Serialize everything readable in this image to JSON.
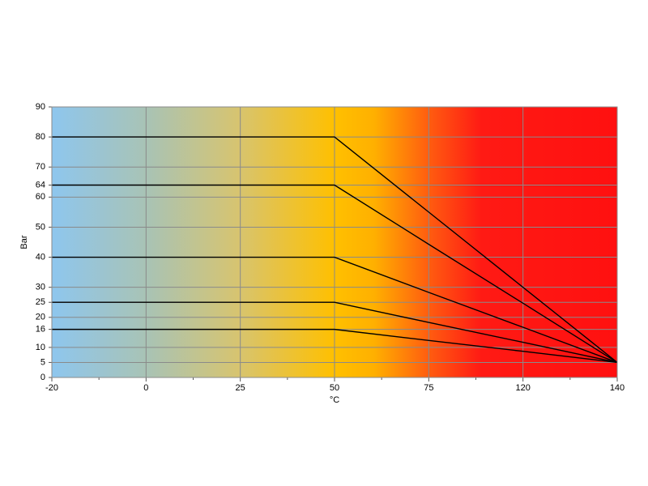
{
  "chart_data": {
    "type": "line",
    "x_label": "°C",
    "y_label": "Bar",
    "categories": [
      "-20",
      "0",
      "25",
      "50",
      "75",
      "120",
      "140"
    ],
    "series": [
      {
        "color": "#000000",
        "values": [
          80,
          80,
          80,
          80,
          55,
          30,
          5
        ]
      },
      {
        "color": "#000000",
        "values": [
          64,
          64,
          64,
          64,
          44.3,
          24.7,
          5
        ]
      },
      {
        "color": "#000000",
        "values": [
          40,
          40,
          40,
          40,
          28.3,
          16.7,
          5
        ]
      },
      {
        "color": "#000000",
        "values": [
          25,
          25,
          25,
          25,
          18.3,
          11.7,
          5
        ]
      },
      {
        "color": "#000000",
        "values": [
          16,
          16,
          16,
          16,
          12.3,
          8.7,
          5
        ]
      }
    ],
    "ylim": [
      0,
      90
    ],
    "yticks": [
      0,
      5,
      10,
      16,
      20,
      25,
      30,
      40,
      50,
      60,
      64,
      70,
      80,
      90
    ],
    "grid": true
  }
}
